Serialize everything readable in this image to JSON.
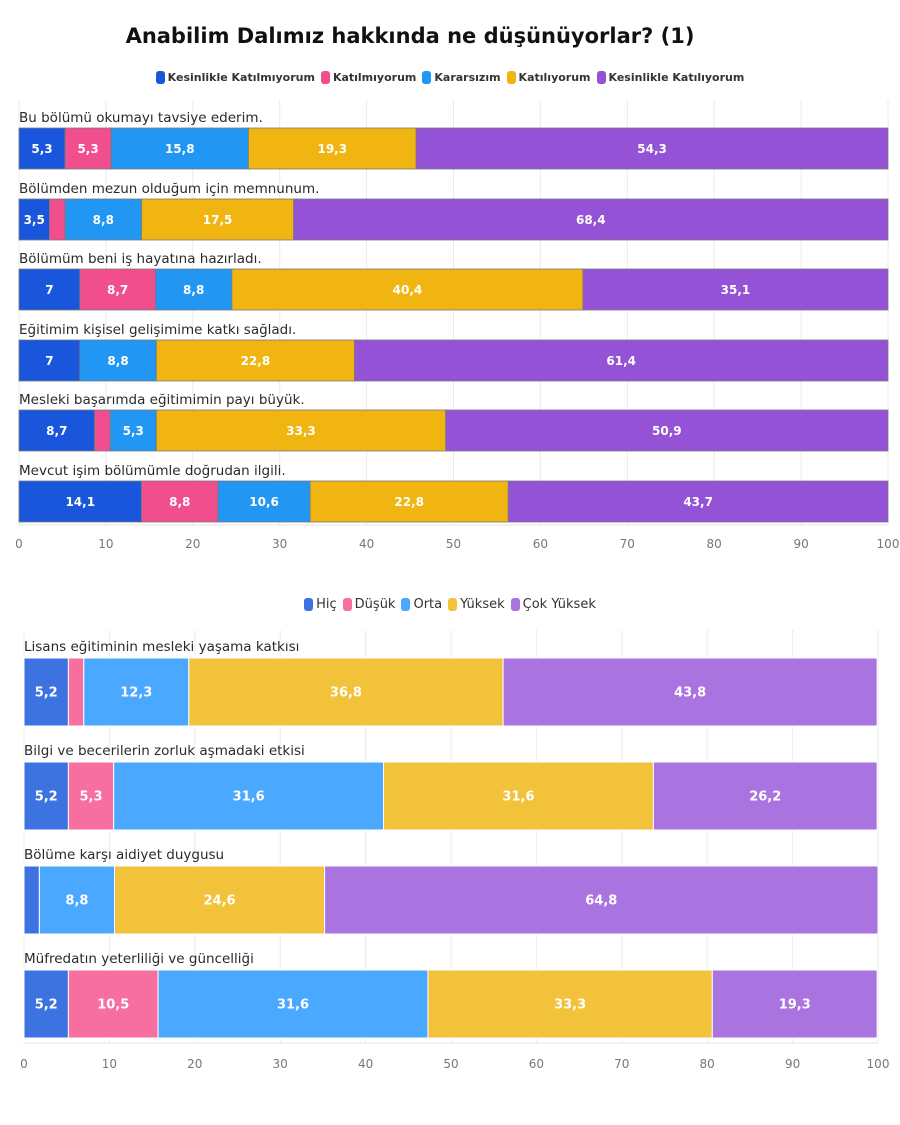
{
  "title": "Anabilim Dalımız hakkında ne düşünüyorlar? (1)",
  "chart_data": [
    {
      "type": "bar",
      "orientation": "horizontal",
      "stacked": true,
      "title": "Anabilim Dalımız hakkında ne düşünüyorlar? (1)",
      "xlabel": "",
      "ylabel": "",
      "xlim": [
        0,
        100
      ],
      "xticks": [
        "0",
        "10",
        "20",
        "30",
        "40",
        "50",
        "60",
        "70",
        "80",
        "90",
        "100"
      ],
      "grid": true,
      "legend_position": "top",
      "categories": [
        "Bu bölümü okumayı tavsiye ederim.",
        "Bölümden mezun olduğum için memnunum.",
        "Bölümüm beni iş hayatına hazırladı.",
        "Eğitimim kişisel gelişimime katkı sağladı.",
        "Mesleki başarımda eğitimimin payı büyük.",
        "Mevcut işim bölümümle doğrudan ilgili."
      ],
      "series": [
        {
          "name": "Kesinlikle Katılmıyorum",
          "color": "#1a56db",
          "values": [
            5.3,
            3.5,
            7,
            7,
            8.7,
            14.1
          ],
          "labels": [
            "5,3",
            "3,5",
            "7",
            "7",
            "8,7",
            "14,1"
          ]
        },
        {
          "name": "Katılmıyorum",
          "color": "#f04e8c",
          "values": [
            5.3,
            1.8,
            8.7,
            0,
            1.8,
            8.8
          ],
          "labels": [
            "5,3",
            "",
            "8,7",
            "",
            "",
            "8,8"
          ]
        },
        {
          "name": "Kararsızım",
          "color": "#2196f3",
          "values": [
            15.8,
            8.8,
            8.8,
            8.8,
            5.3,
            10.6
          ],
          "labels": [
            "15,8",
            "8,8",
            "8,8",
            "8,8",
            "5,3",
            "10,6"
          ]
        },
        {
          "name": "Katılıyorum",
          "color": "#f0b511",
          "values": [
            19.3,
            17.5,
            40.4,
            22.8,
            33.3,
            22.8
          ],
          "labels": [
            "19,3",
            "17,5",
            "40,4",
            "22,8",
            "33,3",
            "22,8"
          ]
        },
        {
          "name": "Kesinlikle Katılıyorum",
          "color": "#9452d6",
          "values": [
            54.3,
            68.4,
            35.1,
            61.4,
            50.9,
            43.7
          ],
          "labels": [
            "54,3",
            "68,4",
            "35,1",
            "61,4",
            "50,9",
            "43,7"
          ]
        }
      ]
    },
    {
      "type": "bar",
      "orientation": "horizontal",
      "stacked": true,
      "title": "",
      "xlabel": "",
      "ylabel": "",
      "xlim": [
        0,
        100
      ],
      "xticks": [
        "0",
        "10",
        "20",
        "30",
        "40",
        "50",
        "60",
        "70",
        "80",
        "90",
        "100"
      ],
      "grid": true,
      "legend_position": "top",
      "categories": [
        "Lisans eğitiminin mesleki yaşama katkısı",
        "Bilgi ve becerilerin zorluk aşmadaki etkisi",
        "Bölüme karşı aidiyet duygusu",
        "Müfredatın yeterliliği ve güncelliği"
      ],
      "series": [
        {
          "name": "Hiç",
          "color": "#3d73e0",
          "values": [
            5.2,
            5.2,
            1.8,
            5.2
          ],
          "labels": [
            "5,2",
            "5,2",
            "",
            "5,2"
          ]
        },
        {
          "name": "Düşük",
          "color": "#f76fa0",
          "values": [
            1.8,
            5.3,
            0,
            10.5
          ],
          "labels": [
            "",
            "5,3",
            "",
            "10,5"
          ]
        },
        {
          "name": "Orta",
          "color": "#4aa8ff",
          "values": [
            12.3,
            31.6,
            8.8,
            31.6
          ],
          "labels": [
            "12,3",
            "31,6",
            "8,8",
            "31,6"
          ]
        },
        {
          "name": "Yüksek",
          "color": "#f2c23b",
          "values": [
            36.8,
            31.6,
            24.6,
            33.3
          ],
          "labels": [
            "36,8",
            "31,6",
            "24,6",
            "33,3"
          ]
        },
        {
          "name": "Çok Yüksek",
          "color": "#a973e0",
          "values": [
            43.8,
            26.2,
            64.8,
            19.3
          ],
          "labels": [
            "43,8",
            "26,2",
            "64,8",
            "19,3"
          ]
        }
      ]
    }
  ]
}
